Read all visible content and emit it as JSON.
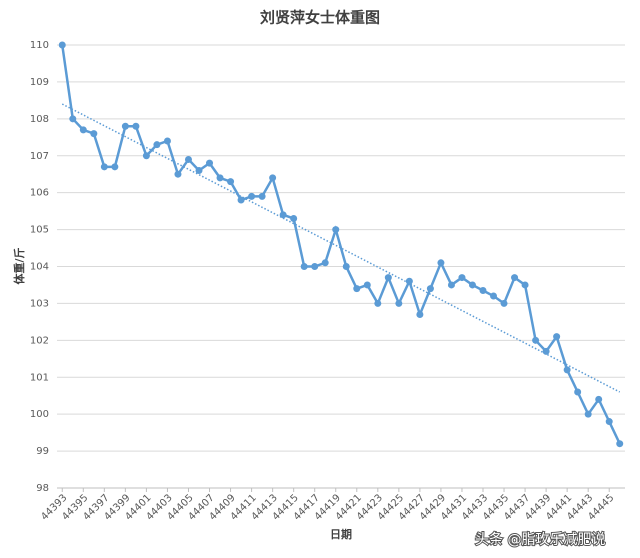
{
  "chart_data": {
    "type": "line",
    "title": "刘贤萍女士体重图",
    "x_label": "日期",
    "y_label": "体重/斤",
    "x": [
      44393,
      44394,
      44395,
      44396,
      44397,
      44398,
      44399,
      44400,
      44401,
      44402,
      44403,
      44404,
      44405,
      44406,
      44407,
      44408,
      44409,
      44410,
      44411,
      44412,
      44413,
      44414,
      44415,
      44416,
      44417,
      44418,
      44419,
      44420,
      44421,
      44422,
      44423,
      44424,
      44425,
      44426,
      44427,
      44428,
      44429,
      44430,
      44431,
      44432,
      44433,
      44434,
      44435,
      44436,
      44437,
      44438,
      44439,
      44440,
      44441,
      44442,
      44443,
      44444,
      44445,
      44446
    ],
    "series": [
      {
        "color": "#5b9bd5",
        "values": [
          110,
          108.0,
          107.7,
          107.6,
          106.7,
          106.7,
          107.8,
          107.8,
          107.0,
          107.3,
          107.4,
          106.5,
          106.9,
          106.6,
          106.8,
          106.4,
          106.3,
          105.8,
          105.9,
          105.9,
          106.4,
          105.4,
          105.3,
          104.0,
          104.0,
          104.1,
          105.0,
          104.0,
          103.4,
          103.5,
          103.0,
          103.7,
          103.0,
          103.6,
          102.7,
          103.4,
          104.1,
          103.5,
          103.7,
          103.5,
          103.35,
          103.2,
          103.0,
          103.7,
          103.5,
          102.0,
          101.7,
          102.1,
          101.2,
          100.6,
          100.0,
          100.4,
          99.8,
          99.2
        ]
      }
    ],
    "trendline": {
      "x": [
        44393,
        44446
      ],
      "y": [
        108.4,
        100.6
      ],
      "color": "#5b9bd5"
    },
    "xlim": [
      44392.5,
      44446.5
    ],
    "xticks": [
      44393,
      44395,
      44397,
      44399,
      44401,
      44403,
      44405,
      44407,
      44409,
      44411,
      44413,
      44415,
      44417,
      44419,
      44421,
      44423,
      44425,
      44427,
      44429,
      44431,
      44433,
      44435,
      44437,
      44439,
      44441,
      44443,
      44445
    ],
    "ylim": [
      98,
      110
    ],
    "yticks": [
      98,
      99,
      100,
      101,
      102,
      103,
      104,
      105,
      106,
      107,
      108,
      109,
      110
    ],
    "grid": true,
    "watermark": "头条 @脂玫乐减肥说"
  }
}
